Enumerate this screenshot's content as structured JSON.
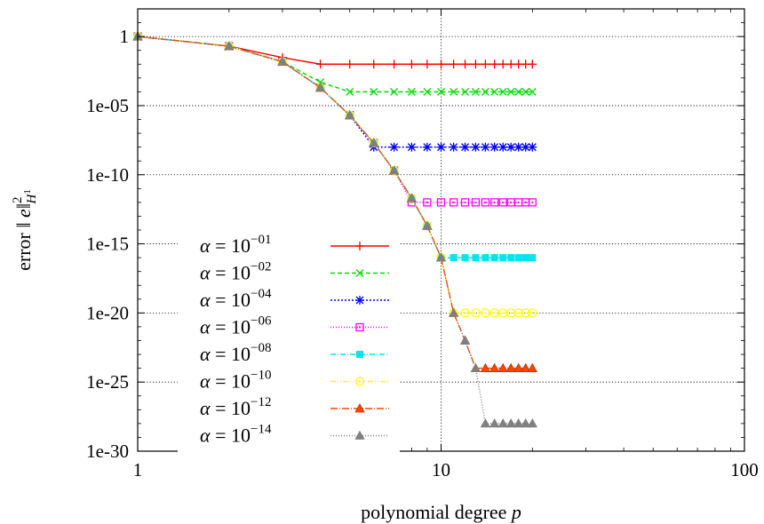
{
  "chart_data": {
    "type": "line",
    "xscale": "log",
    "yscale": "log",
    "xlim": [
      1,
      100
    ],
    "ylim": [
      1e-30,
      100
    ],
    "xlabel": "polynomial degree p",
    "ylabel": "error ‖e‖²_{H¹}",
    "xticks": [
      1,
      10,
      100
    ],
    "xtick_labels": [
      "1",
      "10",
      "100"
    ],
    "yticks": [
      1,
      1e-05,
      1e-10,
      1e-15,
      1e-20,
      1e-25,
      1e-30
    ],
    "ytick_labels": [
      "1",
      "1e-05",
      "1e-10",
      "1e-15",
      "1e-20",
      "1e-25",
      "1e-30"
    ],
    "grid": true,
    "legend_position": "lower-left",
    "x": [
      1,
      2,
      3,
      4,
      5,
      6,
      7,
      8,
      9,
      10,
      11,
      12,
      13,
      14,
      15,
      16,
      17,
      18,
      19,
      20
    ],
    "series": [
      {
        "name": "α = 10^{−01}",
        "exp": "−01",
        "color": "#ff0000",
        "dash": "",
        "marker": "plus",
        "y": [
          1,
          0.2,
          0.03,
          0.01,
          0.01,
          0.01,
          0.01,
          0.01,
          0.01,
          0.01,
          0.01,
          0.01,
          0.01,
          0.01,
          0.01,
          0.01,
          0.01,
          0.01,
          0.01,
          0.01
        ]
      },
      {
        "name": "α = 10^{−02}",
        "exp": "−02",
        "color": "#00dd00",
        "dash": "5,3",
        "marker": "cross",
        "y": [
          1,
          0.2,
          0.015,
          0.0005,
          0.0001,
          0.0001,
          0.0001,
          0.0001,
          0.0001,
          0.0001,
          0.0001,
          0.0001,
          0.0001,
          0.0001,
          0.0001,
          0.0001,
          0.0001,
          0.0001,
          0.0001,
          0.0001
        ]
      },
      {
        "name": "α = 10^{−04}",
        "exp": "−04",
        "color": "#0000ff",
        "dash": "2,2",
        "marker": "star",
        "y": [
          1,
          0.2,
          0.015,
          0.0002,
          2e-06,
          1e-08,
          1e-08,
          1e-08,
          1e-08,
          1e-08,
          1e-08,
          1e-08,
          1e-08,
          1e-08,
          1e-08,
          1e-08,
          1e-08,
          1e-08,
          1e-08,
          1e-08
        ]
      },
      {
        "name": "α = 10^{−06}",
        "exp": "−06",
        "color": "#ff00ff",
        "dash": "1,2",
        "marker": "square-open",
        "y": [
          1,
          0.2,
          0.015,
          0.0002,
          2e-06,
          2e-08,
          2e-10,
          1e-12,
          1e-12,
          1e-12,
          1e-12,
          1e-12,
          1e-12,
          1e-12,
          1e-12,
          1e-12,
          1e-12,
          1e-12,
          1e-12,
          1e-12
        ]
      },
      {
        "name": "α = 10^{−08}",
        "exp": "−08",
        "color": "#00e5ee",
        "dash": "6,2,1,2",
        "marker": "square-filled",
        "y": [
          1,
          0.2,
          0.015,
          0.0002,
          2e-06,
          2e-08,
          2e-10,
          2e-12,
          2e-14,
          1e-16,
          1e-16,
          1e-16,
          1e-16,
          1e-16,
          1e-16,
          1e-16,
          1e-16,
          1e-16,
          1e-16,
          1e-16
        ]
      },
      {
        "name": "α = 10^{−10}",
        "exp": "−10",
        "color": "#ffff00",
        "dash": "6,2,1,2,1,2",
        "marker": "circle-open",
        "y": [
          1,
          0.2,
          0.015,
          0.0002,
          2e-06,
          2e-08,
          2e-10,
          2e-12,
          2e-14,
          1e-16,
          1e-20,
          1e-20,
          1e-20,
          1e-20,
          1e-20,
          1e-20,
          1e-20,
          1e-20,
          1e-20,
          1e-20
        ]
      },
      {
        "name": "α = 10^{−12}",
        "exp": "−12",
        "color": "#ff4500",
        "dash": "8,2,1,2",
        "marker": "triangle-filled",
        "y": [
          1,
          0.2,
          0.015,
          0.0002,
          2e-06,
          2e-08,
          2e-10,
          2e-12,
          2e-14,
          1e-16,
          1e-20,
          1e-22,
          1e-24,
          1e-24,
          1e-24,
          1e-24,
          1e-24,
          1e-24,
          1e-24,
          1e-24
        ]
      },
      {
        "name": "α = 10^{−14}",
        "exp": "−14",
        "color": "#808080",
        "dash": "1,2",
        "marker": "triangle-filled",
        "y": [
          1,
          0.2,
          0.015,
          0.0002,
          2e-06,
          2e-08,
          2e-10,
          2e-12,
          2e-14,
          1e-16,
          1e-20,
          1e-22,
          1e-24,
          1e-28,
          1e-28,
          1e-28,
          1e-28,
          1e-28,
          1e-28,
          1e-28
        ]
      }
    ]
  }
}
